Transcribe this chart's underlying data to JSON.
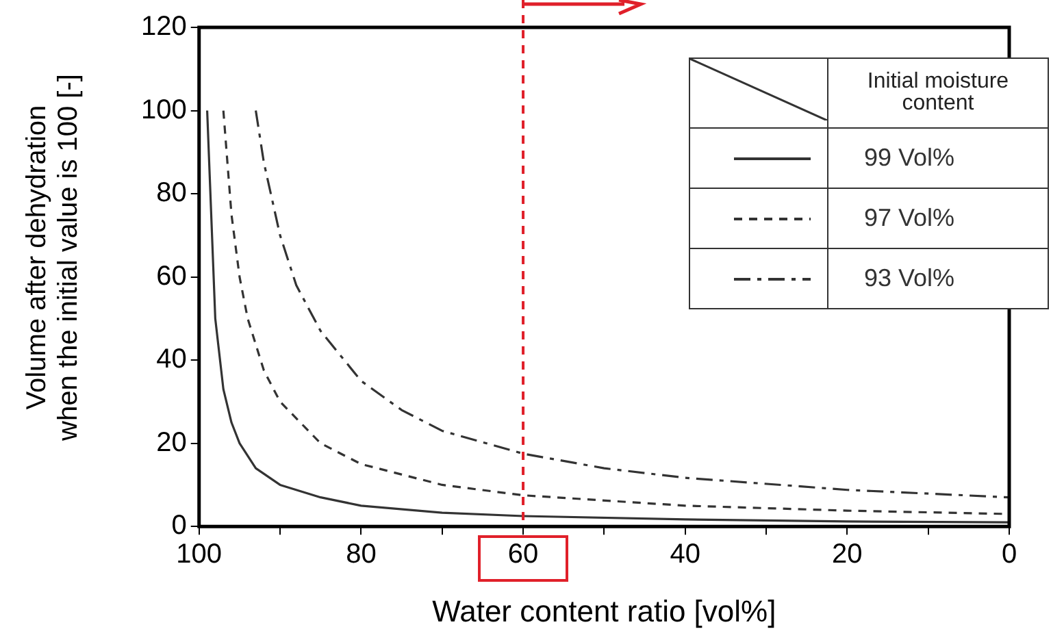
{
  "chart_data": {
    "type": "line",
    "xlabel": "Water content ratio [vol%]",
    "ylabel": "Volume after dehydration when the initial value is 100 [-]",
    "legend_title": "Initial moisture content",
    "legend": "top right",
    "grid": false,
    "marker": "none",
    "xlim": [
      100,
      0
    ],
    "xticks": [
      100,
      {
        "value": 90,
        "label": null
      },
      80,
      {
        "value": 70,
        "label": null
      },
      60,
      {
        "value": 50,
        "label": null
      },
      40,
      {
        "value": 30,
        "label": null
      },
      20,
      {
        "value": 10,
        "label": null
      },
      0
    ],
    "ylim": [
      0,
      120
    ],
    "yticks": [
      0,
      20,
      40,
      60,
      80,
      100,
      120
    ],
    "ref_lines": [
      {
        "axis": "x",
        "value": 60,
        "color": "#e0202a",
        "line_style": "dashed"
      }
    ],
    "series": [
      {
        "name": "99   Vol%",
        "color": "#333333",
        "line_style": "solid",
        "x": [
          99,
          98,
          97,
          96,
          95,
          93,
          90,
          85,
          80,
          70,
          60,
          40,
          20,
          0
        ],
        "values": [
          100,
          50,
          33,
          25,
          20,
          14,
          10,
          7,
          5,
          3.3,
          2.5,
          1.7,
          1.2,
          1
        ]
      },
      {
        "name": "97   Vol%",
        "color": "#333333",
        "line_style": "dashed",
        "x": [
          97,
          96,
          95,
          94,
          92,
          90,
          85,
          80,
          70,
          60,
          40,
          20,
          0
        ],
        "values": [
          100,
          75,
          60,
          50,
          37.5,
          30,
          20,
          15,
          10,
          7.5,
          5,
          3.8,
          3
        ]
      },
      {
        "name": "93   Vol%",
        "color": "#333333",
        "line_style": "dashdot",
        "x": [
          93,
          92,
          90,
          88,
          85,
          80,
          75,
          70,
          60,
          50,
          40,
          20,
          0
        ],
        "values": [
          100,
          87.5,
          70,
          58,
          47,
          35,
          28,
          23,
          17.5,
          14,
          11.7,
          8.8,
          7
        ]
      }
    ]
  }
}
